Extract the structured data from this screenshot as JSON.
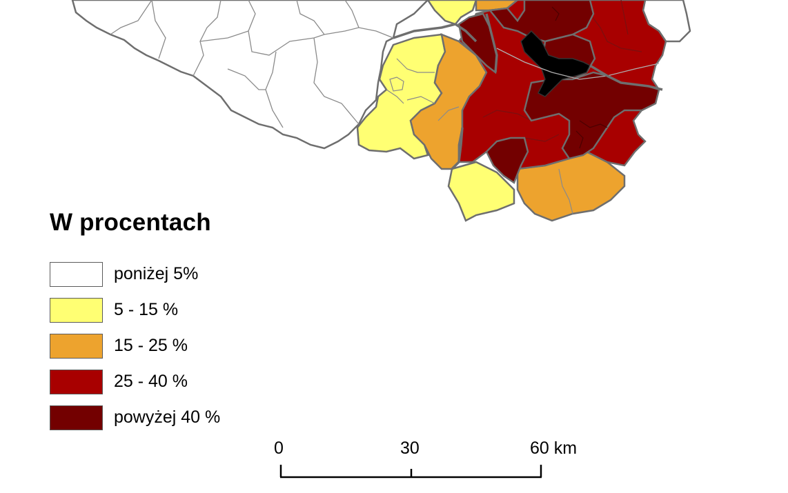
{
  "legend": {
    "title": "W procentach",
    "items": [
      {
        "label": "poniżej 5%",
        "color": "#ffffff"
      },
      {
        "label": "5 - 15 %",
        "color": "#ffff73"
      },
      {
        "label": "15 - 25 %",
        "color": "#eda32e"
      },
      {
        "label": "25 - 40 %",
        "color": "#a80000"
      },
      {
        "label": "powyżej 40 %",
        "color": "#730000"
      }
    ]
  },
  "scale_bar": {
    "ticks": [
      "0",
      "30",
      "60 km"
    ]
  },
  "colors": {
    "city_center": "#000000",
    "border": "#6e6e6e",
    "background": "#ffffff"
  }
}
